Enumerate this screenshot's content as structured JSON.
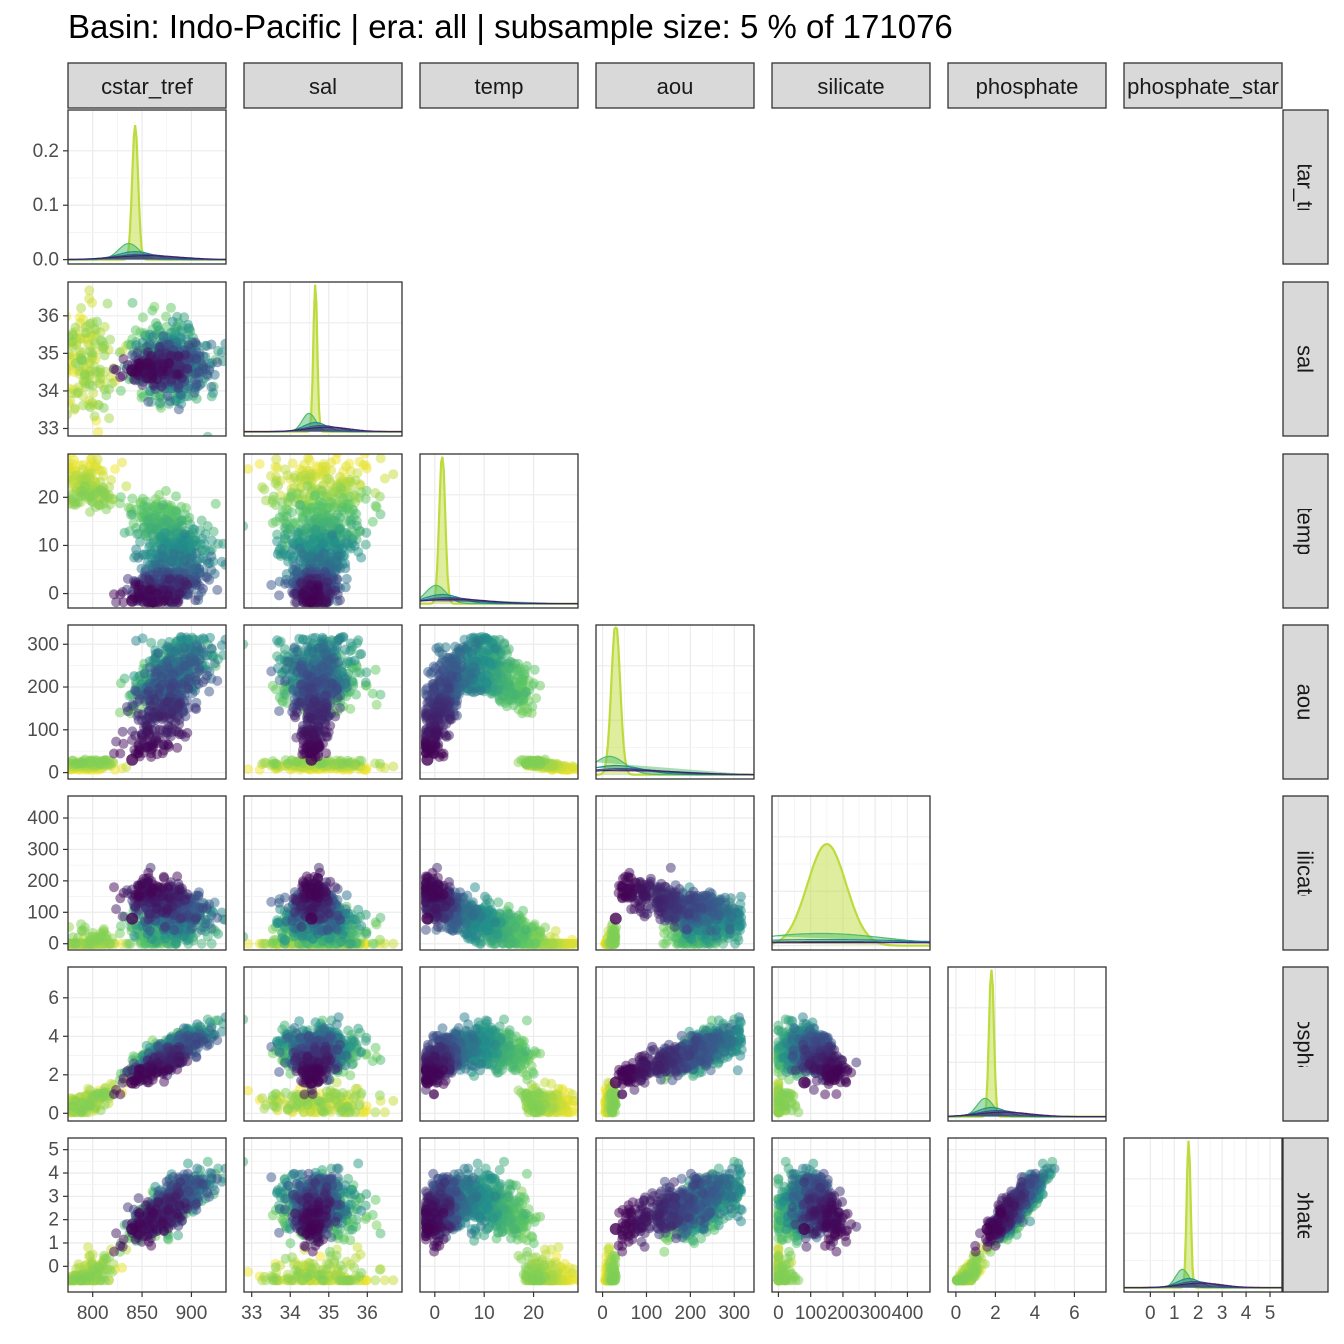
{
  "title": "Basin: Indo-Pacific | era: all | subsample size: 5 % of 171076",
  "chart_data": {
    "type": "scatter",
    "layout": "pairs-matrix-lower-triangle",
    "diagonal": "density",
    "color_scale": "viridis",
    "colors": [
      "#440154",
      "#3b528b",
      "#21908c",
      "#5dc863",
      "#fde725"
    ],
    "grid": true,
    "variables": [
      {
        "name": "cstar_tref",
        "range": [
          775,
          935
        ],
        "ticks": [
          800,
          850,
          900
        ],
        "tick_labels": [
          "800",
          "850",
          "900"
        ]
      },
      {
        "name": "sal",
        "range": [
          32.8,
          36.9
        ],
        "ticks": [
          33,
          34,
          35,
          36
        ],
        "tick_labels": [
          "33",
          "34",
          "35",
          "36"
        ]
      },
      {
        "name": "temp",
        "range": [
          -3,
          29
        ],
        "ticks": [
          0,
          10,
          20
        ],
        "tick_labels": [
          "0",
          "10",
          "20"
        ]
      },
      {
        "name": "aou",
        "range": [
          -15,
          345
        ],
        "ticks": [
          0,
          100,
          200,
          300
        ],
        "tick_labels": [
          "0",
          "100",
          "200",
          "300"
        ]
      },
      {
        "name": "silicate",
        "range": [
          -20,
          470
        ],
        "ticks": [
          0,
          100,
          200,
          300,
          400
        ],
        "tick_labels": [
          "0",
          "100",
          "200",
          "300",
          "400"
        ]
      },
      {
        "name": "phosphate",
        "range": [
          -0.4,
          7.6
        ],
        "ticks": [
          0,
          2,
          4,
          6
        ],
        "tick_labels": [
          "0",
          "2",
          "4",
          "6"
        ]
      },
      {
        "name": "phosphate_star",
        "range": [
          -1.1,
          5.5
        ],
        "ticks": [
          0,
          1,
          2,
          3,
          4,
          5
        ],
        "tick_labels": [
          "0",
          "1",
          "2",
          "3",
          "4",
          "5"
        ]
      }
    ],
    "density_y_axis": {
      "range": [
        -0.008,
        0.275
      ],
      "ticks": [
        0.0,
        0.1,
        0.2
      ],
      "tick_labels": [
        "0.0",
        "0.1",
        "0.2"
      ]
    },
    "densities": [
      {
        "peak": 843,
        "width": 3,
        "height": 0.265
      },
      {
        "peak": 34.65,
        "width": 0.05,
        "height": 0.92
      },
      {
        "peak": 1.5,
        "width": 0.6,
        "height": 0.92
      },
      {
        "peak": 30,
        "width": 10,
        "height": 0.9
      },
      {
        "peak": 150,
        "width": 60,
        "height": 0.2
      },
      {
        "peak": 1.8,
        "width": 0.12,
        "height": 0.9
      },
      {
        "peak": 1.6,
        "width": 0.08,
        "height": 0.92
      }
    ],
    "reference_point": {
      "cstar_tref": 840,
      "sal": 34.55,
      "temp": -1.5,
      "aou": 30,
      "silicate": 80,
      "phosphate": 1.6,
      "phosphate_star": 1.6
    }
  }
}
